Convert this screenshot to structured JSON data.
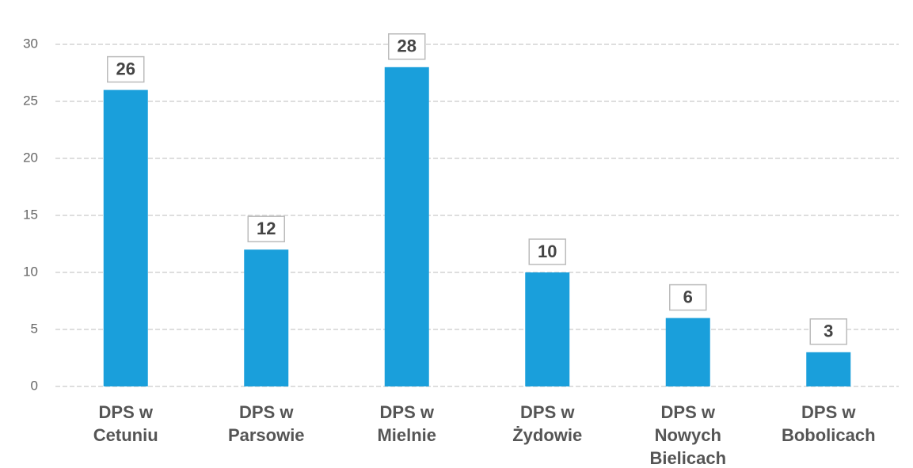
{
  "chart_data": {
    "type": "bar",
    "categories": [
      "DPS w Cetuniu",
      "DPS w Parsowie",
      "DPS w Mielnie",
      "DPS w Żydowie",
      "DPS w Nowych Bielicach",
      "DPS w Bobolicach"
    ],
    "values": [
      26,
      12,
      28,
      10,
      6,
      3
    ],
    "color": "#1a9fdb",
    "ylim": [
      0,
      30
    ],
    "yticks": [
      0,
      5,
      10,
      15,
      20,
      25,
      30
    ],
    "grid": true
  }
}
